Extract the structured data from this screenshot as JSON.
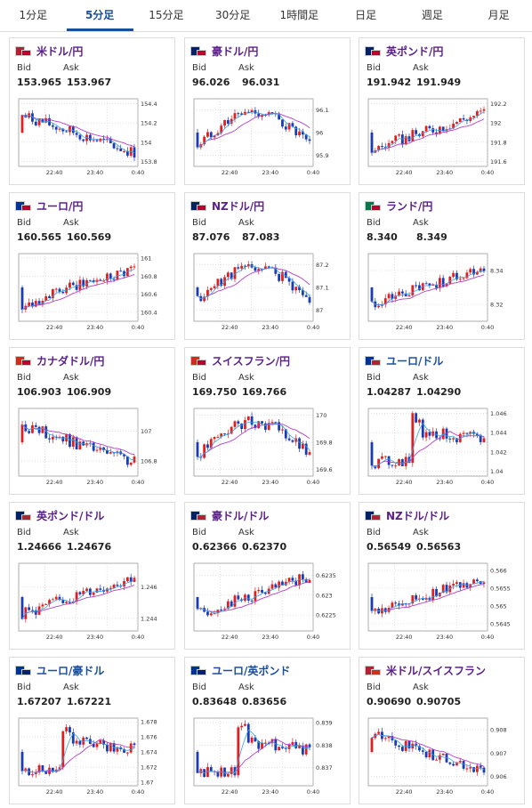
{
  "tabs": [
    {
      "label": "1分足",
      "active": false
    },
    {
      "label": "5分足",
      "active": true
    },
    {
      "label": "15分足",
      "active": false
    },
    {
      "label": "30分足",
      "active": false
    },
    {
      "label": "1時間足",
      "active": false
    },
    {
      "label": "日足",
      "active": false
    },
    {
      "label": "週足",
      "active": false
    },
    {
      "label": "月足",
      "active": false
    }
  ],
  "labels": {
    "bid": "Bid",
    "ask": "Ask"
  },
  "colors": {
    "up": "#e02020",
    "down": "#1a3bb3",
    "ma1": "#b040c8",
    "ma2": "#3aa0e8",
    "pair_purple": "#5a1f8a",
    "pair_blue": "#1b4f9c"
  },
  "cards": [
    {
      "pair": "米ドル/円",
      "flag": "us-jp-flag-icon",
      "bid": "153.965",
      "ask": "153.967",
      "pair_color": "purple",
      "chart_data": {
        "type": "candlestick",
        "x_ticks": [
          "22:40",
          "23:40",
          "0:40"
        ],
        "y_ticks": [
          "154.4",
          "154.2",
          "154",
          "153.8"
        ],
        "ylim": [
          153.75,
          154.45
        ],
        "trend": "down"
      }
    },
    {
      "pair": "豪ドル/円",
      "flag": "au-jp-flag-icon",
      "bid": "96.026",
      "ask": "96.031",
      "pair_color": "purple",
      "chart_data": {
        "type": "candlestick",
        "x_ticks": [
          "22:40",
          "23:40",
          "0:40"
        ],
        "y_ticks": [
          "96.1",
          "96",
          "95.9"
        ],
        "ylim": [
          95.85,
          96.15
        ],
        "trend": "hump"
      }
    },
    {
      "pair": "英ポンド/円",
      "flag": "gb-jp-flag-icon",
      "bid": "191.942",
      "ask": "191.949",
      "pair_color": "purple",
      "chart_data": {
        "type": "candlestick",
        "x_ticks": [
          "22:40",
          "23:40",
          "0:40"
        ],
        "y_ticks": [
          "192.2",
          "192",
          "191.8",
          "191.6"
        ],
        "ylim": [
          191.55,
          192.25
        ],
        "trend": "up"
      }
    },
    {
      "pair": "ユーロ/円",
      "flag": "eu-jp-flag-icon",
      "bid": "160.565",
      "ask": "160.569",
      "pair_color": "purple",
      "chart_data": {
        "type": "candlestick",
        "x_ticks": [
          "22:40",
          "23:40",
          "0:40"
        ],
        "y_ticks": [
          "161",
          "160.8",
          "160.6",
          "160.4"
        ],
        "ylim": [
          160.3,
          161.05
        ],
        "trend": "up"
      }
    },
    {
      "pair": "NZドル/円",
      "flag": "nz-jp-flag-icon",
      "bid": "87.076",
      "ask": "87.083",
      "pair_color": "purple",
      "chart_data": {
        "type": "candlestick",
        "x_ticks": [
          "22:40",
          "23:40",
          "0:40"
        ],
        "y_ticks": [
          "87.2",
          "87.1",
          "87"
        ],
        "ylim": [
          86.95,
          87.25
        ],
        "trend": "hump"
      }
    },
    {
      "pair": "ランド/円",
      "flag": "za-jp-flag-icon",
      "bid": "8.340",
      "ask": "8.349",
      "pair_color": "purple",
      "chart_data": {
        "type": "candlestick",
        "x_ticks": [
          "22:40",
          "23:40",
          "0:40"
        ],
        "y_ticks": [
          "8.34",
          "8.32"
        ],
        "ylim": [
          8.31,
          8.35
        ],
        "trend": "up"
      }
    },
    {
      "pair": "カナダドル/円",
      "flag": "ca-jp-flag-icon",
      "bid": "106.903",
      "ask": "106.909",
      "pair_color": "purple",
      "chart_data": {
        "type": "candlestick",
        "x_ticks": [
          "22:40",
          "23:40",
          "0:40"
        ],
        "y_ticks": [
          "107",
          "106.8"
        ],
        "ylim": [
          106.7,
          107.15
        ],
        "trend": "down"
      }
    },
    {
      "pair": "スイスフラン/円",
      "flag": "ch-jp-flag-icon",
      "bid": "169.750",
      "ask": "169.766",
      "pair_color": "purple",
      "chart_data": {
        "type": "candlestick",
        "x_ticks": [
          "22:40",
          "23:40",
          "0:40"
        ],
        "y_ticks": [
          "170",
          "169.8",
          "169.6"
        ],
        "ylim": [
          169.55,
          170.05
        ],
        "trend": "hump"
      }
    },
    {
      "pair": "ユーロ/ドル",
      "flag": "eu-us-flag-icon",
      "bid": "1.04287",
      "ask": "1.04290",
      "pair_color": "blue",
      "chart_data": {
        "type": "candlestick",
        "x_ticks": [
          "22:40",
          "23:40",
          "0:40"
        ],
        "y_ticks": [
          "1.046",
          "1.044",
          "1.042",
          "1.04"
        ],
        "ylim": [
          1.0395,
          1.0465
        ],
        "trend": "spike"
      }
    },
    {
      "pair": "英ポンド/ドル",
      "flag": "gb-us-flag-icon",
      "bid": "1.24666",
      "ask": "1.24676",
      "pair_color": "purple",
      "chart_data": {
        "type": "candlestick",
        "x_ticks": [
          "22:40",
          "23:40",
          "0:40"
        ],
        "y_ticks": [
          "1.246",
          "1.244"
        ],
        "ylim": [
          1.2432,
          1.2475
        ],
        "trend": "up"
      }
    },
    {
      "pair": "豪ドル/ドル",
      "flag": "au-us-flag-icon",
      "bid": "0.62366",
      "ask": "0.62370",
      "pair_color": "purple",
      "chart_data": {
        "type": "candlestick",
        "x_ticks": [
          "22:40",
          "23:40",
          "0:40"
        ],
        "y_ticks": [
          "0.6235",
          "0.623",
          "0.6225"
        ],
        "ylim": [
          0.6221,
          0.6238
        ],
        "trend": "up"
      }
    },
    {
      "pair": "NZドル/ドル",
      "flag": "nz-us-flag-icon",
      "bid": "0.56549",
      "ask": "0.56563",
      "pair_color": "purple",
      "chart_data": {
        "type": "candlestick",
        "x_ticks": [
          "22:40",
          "23:40",
          "0:40"
        ],
        "y_ticks": [
          "0.566",
          "0.5655",
          "0.565",
          "0.5645"
        ],
        "ylim": [
          0.5643,
          0.5662
        ],
        "trend": "up"
      }
    },
    {
      "pair": "ユーロ/豪ドル",
      "flag": "eu-au-flag-icon",
      "bid": "1.67207",
      "ask": "1.67221",
      "pair_color": "blue",
      "chart_data": {
        "type": "candlestick",
        "x_ticks": [
          "22:40",
          "23:40",
          "0:40"
        ],
        "y_ticks": [
          "1.678",
          "1.676",
          "1.674",
          "1.672",
          "1.67"
        ],
        "ylim": [
          1.6695,
          1.6785
        ],
        "trend": "spike"
      }
    },
    {
      "pair": "ユーロ/英ポンド",
      "flag": "eu-gb-flag-icon",
      "bid": "0.83648",
      "ask": "0.83656",
      "pair_color": "blue",
      "chart_data": {
        "type": "candlestick",
        "x_ticks": [
          "22:40",
          "23:40",
          "0:40"
        ],
        "y_ticks": [
          "0.839",
          "0.838",
          "0.837"
        ],
        "ylim": [
          0.8362,
          0.8392
        ],
        "trend": "spike"
      }
    },
    {
      "pair": "米ドル/スイスフラン",
      "flag": "us-ch-flag-icon",
      "bid": "0.90690",
      "ask": "0.90705",
      "pair_color": "purple",
      "chart_data": {
        "type": "candlestick",
        "x_ticks": [
          "22:40",
          "23:40",
          "0:40"
        ],
        "y_ticks": [
          "0.908",
          "0.907",
          "0.906"
        ],
        "ylim": [
          0.9056,
          0.9085
        ],
        "trend": "down"
      }
    }
  ]
}
